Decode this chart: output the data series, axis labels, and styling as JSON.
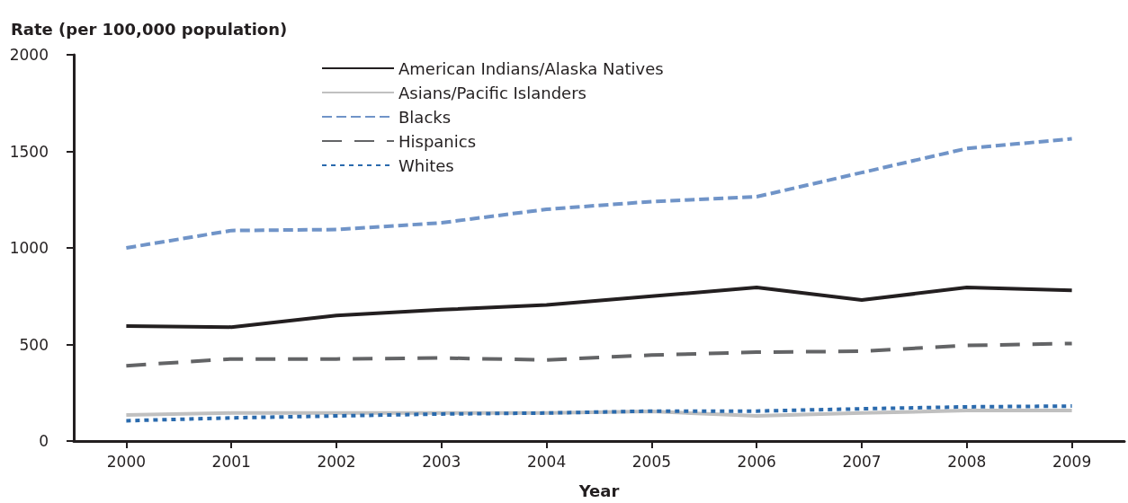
{
  "chart_data": {
    "type": "line",
    "xlabel": "Year",
    "ylabel": "Rate (per 100,000 population)",
    "categories": [
      "2000",
      "2001",
      "2002",
      "2003",
      "2004",
      "2005",
      "2006",
      "2007",
      "2008",
      "2009"
    ],
    "series": [
      {
        "name": "American Indians/Alaska Natives",
        "color": "#231f20",
        "line_style": "solid",
        "values": [
          595,
          590,
          650,
          680,
          705,
          750,
          795,
          730,
          795,
          780
        ]
      },
      {
        "name": "Asians/Pacific Islanders",
        "color": "#c0c0c0",
        "line_style": "solid",
        "values": [
          135,
          145,
          145,
          145,
          145,
          153,
          130,
          145,
          158,
          158
        ]
      },
      {
        "name": "Blacks",
        "color": "#7094c8",
        "line_style": "dashed",
        "values": [
          1000,
          1090,
          1095,
          1130,
          1200,
          1240,
          1265,
          1390,
          1515,
          1565
        ]
      },
      {
        "name": "Hispanics",
        "color": "#636466",
        "line_style": "dashed",
        "values": [
          390,
          425,
          425,
          430,
          420,
          445,
          460,
          465,
          495,
          505
        ]
      },
      {
        "name": "Whites",
        "color": "#2a6aad",
        "line_style": "dotted",
        "values": [
          105,
          120,
          130,
          140,
          145,
          155,
          155,
          167,
          177,
          181
        ]
      }
    ],
    "ylim": [
      0,
      2000
    ],
    "yticks": [
      0,
      500,
      1000,
      1500,
      2000
    ],
    "grid": false,
    "legend": "top",
    "marker": "none"
  }
}
